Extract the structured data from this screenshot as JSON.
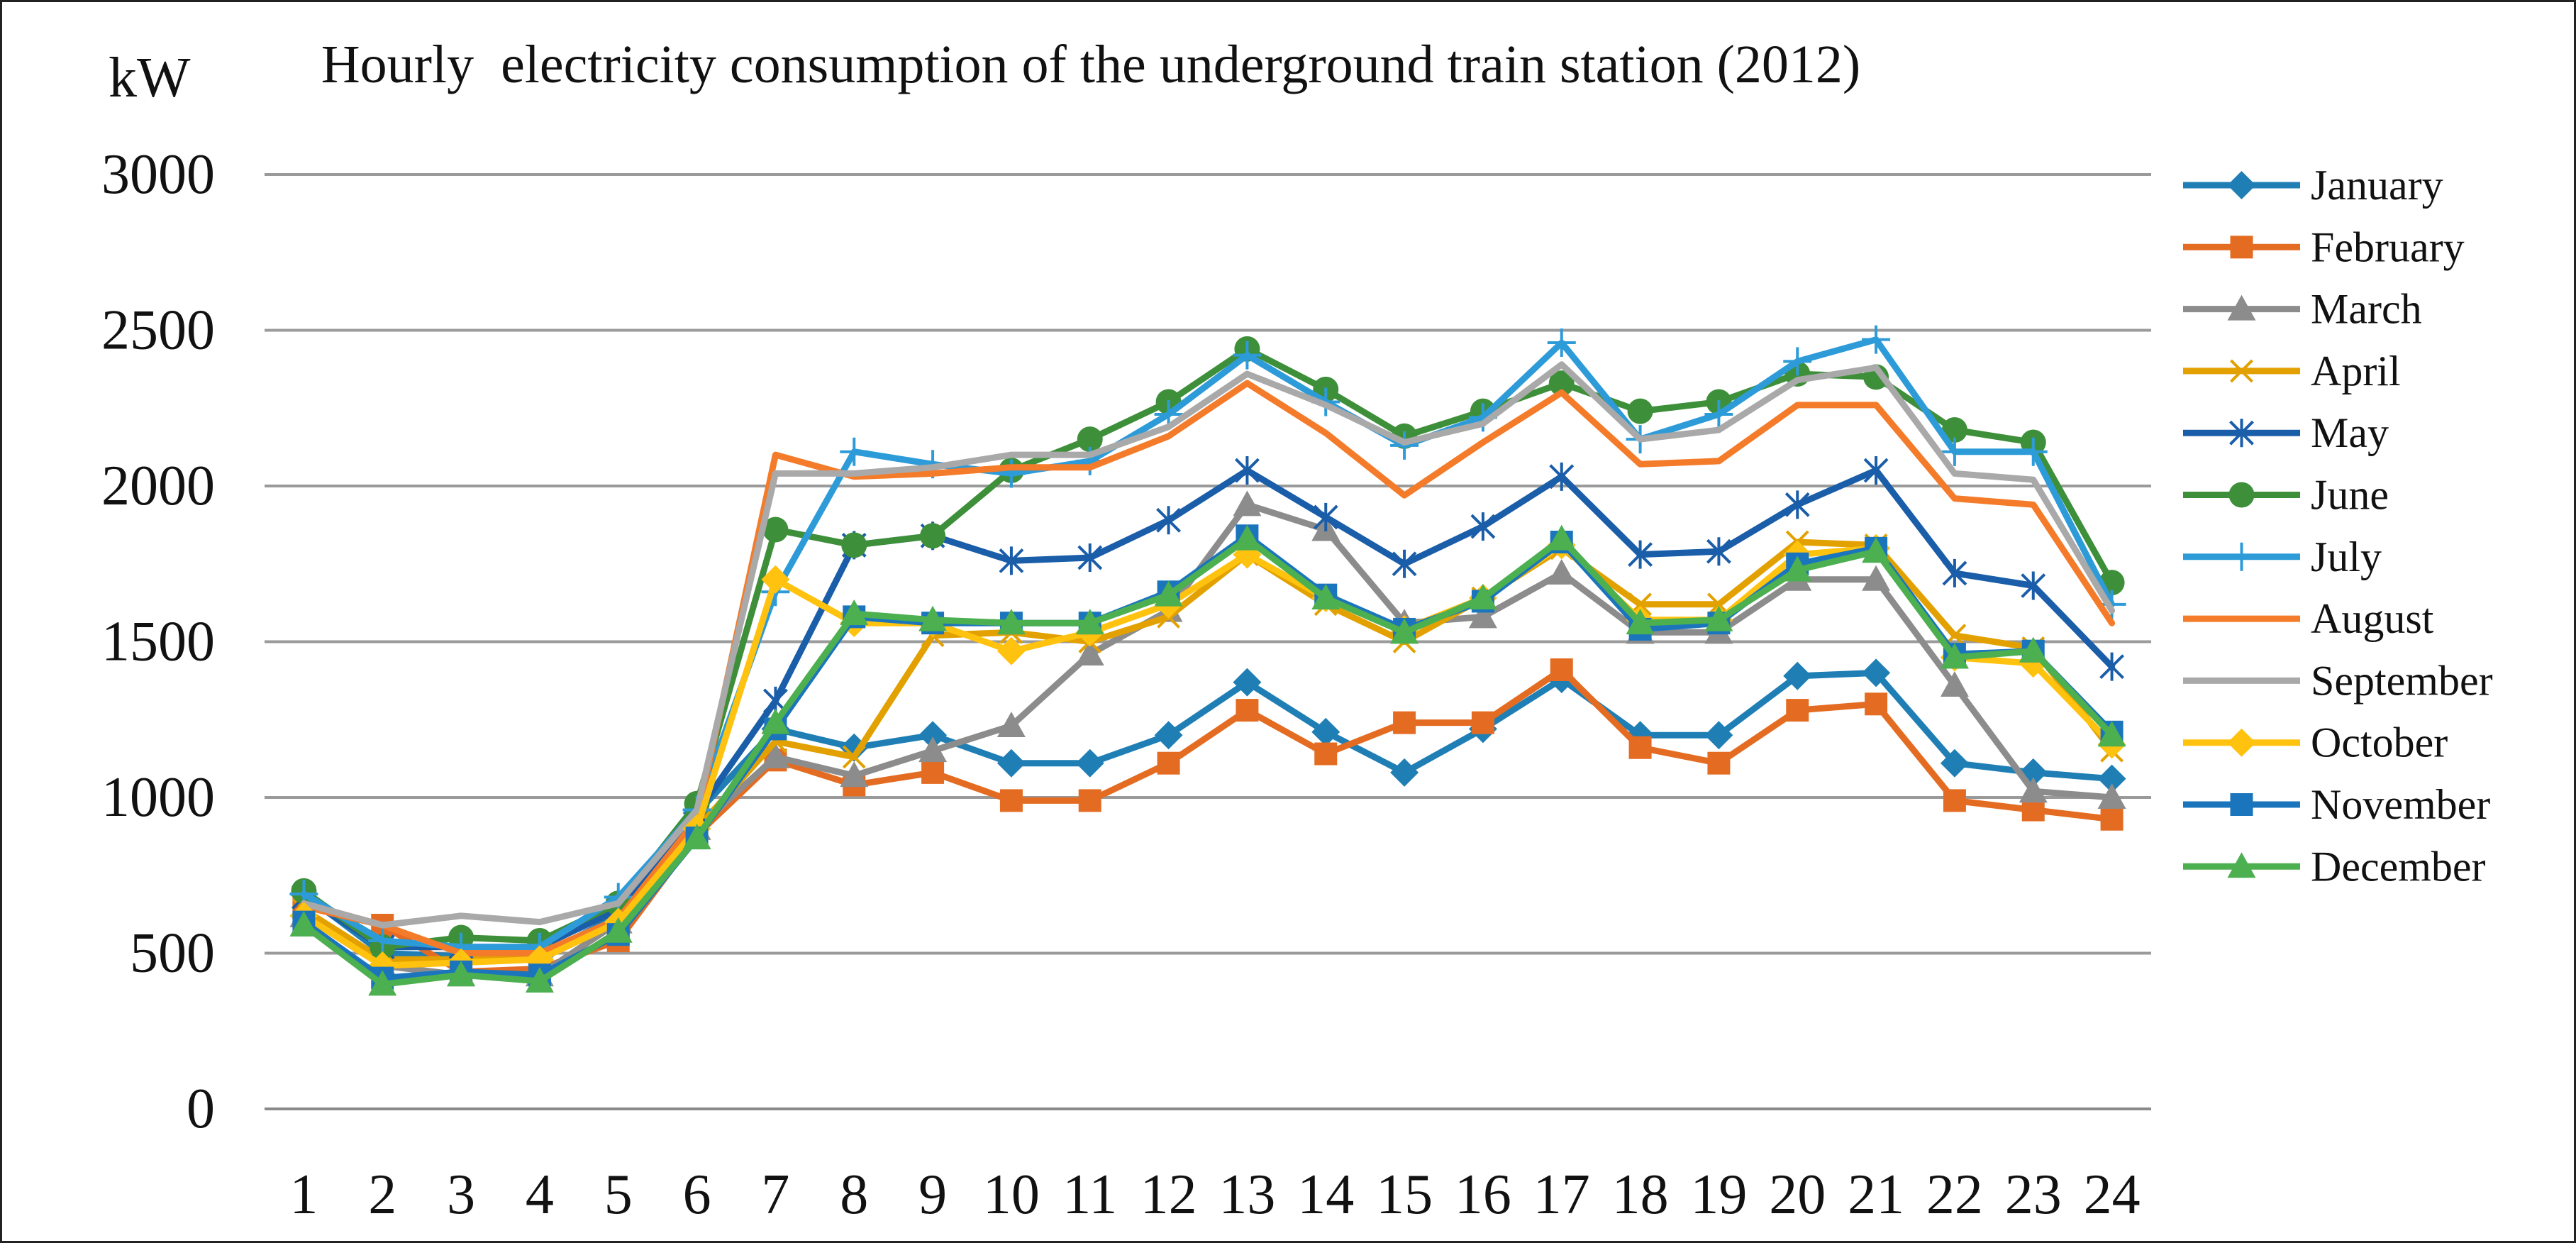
{
  "chart_data": {
    "type": "line",
    "title": "Hourly  electricity consumption of the underground train station (2012)",
    "ylabel": "kW",
    "xlabel": "",
    "ylim": [
      0,
      3000
    ],
    "yticks": [
      0,
      500,
      1000,
      1500,
      2000,
      2500,
      3000
    ],
    "x": [
      1,
      2,
      3,
      4,
      5,
      6,
      7,
      8,
      9,
      10,
      11,
      12,
      13,
      14,
      15,
      16,
      17,
      18,
      19,
      20,
      21,
      22,
      23,
      24
    ],
    "grid": "horizontal",
    "legend_position": "right",
    "series": [
      {
        "name": "January",
        "color": "#1F7FB5",
        "marker": "diamond",
        "values": [
          690,
          500,
          490,
          490,
          620,
          950,
          1220,
          1160,
          1200,
          1110,
          1110,
          1200,
          1370,
          1210,
          1080,
          1220,
          1380,
          1200,
          1200,
          1390,
          1400,
          1110,
          1080,
          1060
        ]
      },
      {
        "name": "February",
        "color": "#E46C22",
        "marker": "square",
        "values": [
          660,
          590,
          440,
          450,
          540,
          880,
          1120,
          1040,
          1080,
          990,
          990,
          1110,
          1280,
          1140,
          1240,
          1240,
          1410,
          1160,
          1110,
          1280,
          1300,
          990,
          960,
          930
        ]
      },
      {
        "name": "March",
        "color": "#8C8C8C",
        "marker": "triangle",
        "values": [
          620,
          460,
          430,
          430,
          600,
          900,
          1130,
          1070,
          1150,
          1230,
          1460,
          1600,
          1940,
          1860,
          1560,
          1580,
          1720,
          1530,
          1530,
          1700,
          1700,
          1360,
          1020,
          1000
        ]
      },
      {
        "name": "April",
        "color": "#E2A100",
        "marker": "x",
        "values": [
          640,
          480,
          480,
          480,
          610,
          900,
          1180,
          1130,
          1520,
          1530,
          1500,
          1580,
          1780,
          1620,
          1500,
          1640,
          1800,
          1620,
          1620,
          1820,
          1810,
          1520,
          1480,
          1150
        ]
      },
      {
        "name": "May",
        "color": "#1A5DA8",
        "marker": "star",
        "values": [
          680,
          520,
          520,
          520,
          640,
          950,
          1310,
          1810,
          1840,
          1760,
          1770,
          1890,
          2050,
          1900,
          1750,
          1870,
          2030,
          1780,
          1790,
          1940,
          2050,
          1720,
          1680,
          1420
        ]
      },
      {
        "name": "June",
        "color": "#3E8F3A",
        "marker": "circle",
        "values": [
          700,
          520,
          550,
          540,
          660,
          980,
          1860,
          1810,
          1840,
          2050,
          2150,
          2270,
          2440,
          2310,
          2160,
          2240,
          2330,
          2240,
          2270,
          2360,
          2350,
          2180,
          2140,
          1690
        ]
      },
      {
        "name": "July",
        "color": "#2E9BD9",
        "marker": "plus",
        "values": [
          690,
          540,
          520,
          520,
          680,
          960,
          1660,
          2110,
          2070,
          2040,
          2080,
          2230,
          2420,
          2270,
          2130,
          2220,
          2460,
          2150,
          2230,
          2400,
          2470,
          2110,
          2110,
          1620
        ]
      },
      {
        "name": "August",
        "color": "#F47B2A",
        "marker": "none",
        "values": [
          650,
          590,
          500,
          500,
          610,
          930,
          2100,
          2030,
          2040,
          2060,
          2060,
          2160,
          2330,
          2170,
          1970,
          2140,
          2300,
          2070,
          2080,
          2260,
          2260,
          1960,
          1940,
          1560
        ]
      },
      {
        "name": "September",
        "color": "#A9A9A9",
        "marker": "none",
        "values": [
          660,
          590,
          620,
          600,
          660,
          960,
          2040,
          2040,
          2060,
          2100,
          2100,
          2190,
          2360,
          2260,
          2140,
          2200,
          2390,
          2150,
          2180,
          2340,
          2380,
          2040,
          2020,
          1600
        ]
      },
      {
        "name": "October",
        "color": "#FFC20E",
        "marker": "diamond",
        "values": [
          620,
          460,
          470,
          480,
          600,
          900,
          1700,
          1560,
          1560,
          1470,
          1530,
          1620,
          1780,
          1640,
          1540,
          1640,
          1810,
          1570,
          1570,
          1780,
          1800,
          1450,
          1430,
          1170
        ]
      },
      {
        "name": "November",
        "color": "#1B75BC",
        "marker": "square",
        "values": [
          600,
          420,
          440,
          430,
          560,
          870,
          1220,
          1580,
          1560,
          1560,
          1560,
          1660,
          1840,
          1650,
          1540,
          1630,
          1820,
          1540,
          1560,
          1750,
          1800,
          1460,
          1470,
          1210
        ]
      },
      {
        "name": "December",
        "color": "#4CAF50",
        "marker": "triangle",
        "values": [
          590,
          400,
          430,
          410,
          570,
          870,
          1240,
          1590,
          1570,
          1560,
          1560,
          1650,
          1830,
          1640,
          1530,
          1640,
          1830,
          1560,
          1570,
          1730,
          1790,
          1450,
          1470,
          1200
        ]
      }
    ]
  }
}
